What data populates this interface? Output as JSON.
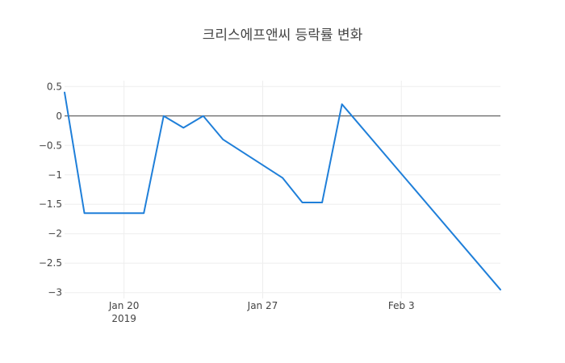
{
  "chart_data": {
    "type": "line",
    "title": "크리스에프앤씨 등락률 변화",
    "xlabel": "",
    "ylabel": "",
    "x_axis_type": "date",
    "x_tick_labels": [
      {
        "date": "2019-01-20",
        "line1": "Jan 20",
        "line2": "2019"
      },
      {
        "date": "2019-01-27",
        "line1": "Jan 27",
        "line2": ""
      },
      {
        "date": "2019-02-03",
        "line1": "Feb 3",
        "line2": ""
      }
    ],
    "y_tick_labels": [
      "0.5",
      "0",
      "−0.5",
      "−1",
      "−1.5",
      "−2",
      "−2.5",
      "−3"
    ],
    "y_tick_values": [
      0.5,
      0,
      -0.5,
      -1,
      -1.5,
      -2,
      -2.5,
      -3
    ],
    "xlim": [
      "2019-01-17",
      "2019-02-08"
    ],
    "ylim": [
      -3.1,
      0.6
    ],
    "grid": true,
    "zero_line": true,
    "series": [
      {
        "color": "#1f7fd9",
        "x": [
          "2019-01-17",
          "2019-01-18",
          "2019-01-21",
          "2019-01-22",
          "2019-01-23",
          "2019-01-24",
          "2019-01-25",
          "2019-01-28",
          "2019-01-29",
          "2019-01-30",
          "2019-01-31",
          "2019-02-08"
        ],
        "y": [
          0.4,
          -1.65,
          -1.65,
          0.0,
          -0.2,
          0.0,
          -0.4,
          -1.05,
          -1.47,
          -1.47,
          0.2,
          -2.95
        ]
      }
    ]
  }
}
